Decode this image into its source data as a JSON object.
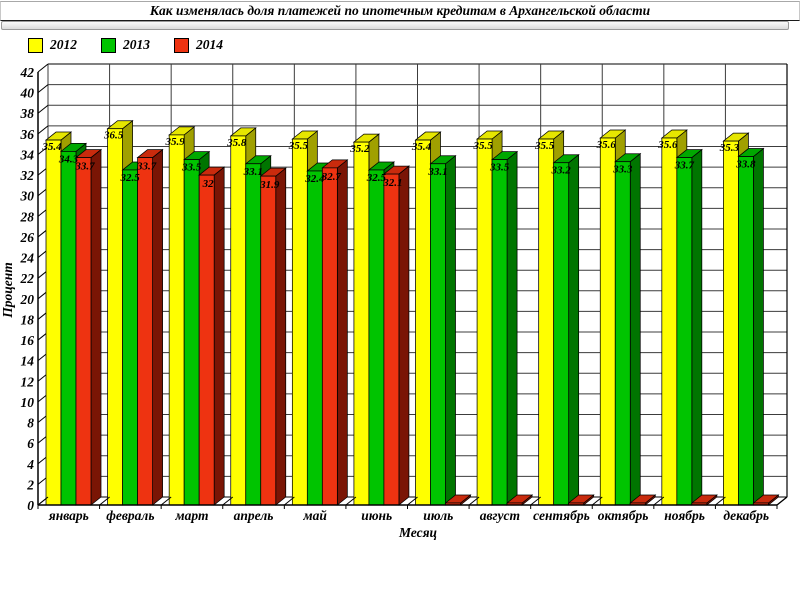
{
  "chart_data": {
    "type": "bar",
    "style": "3d-clustered",
    "title": "Как изменялась доля платежей по ипотечным кредитам в Архангельской области",
    "xlabel": "Месяц",
    "ylabel": "Процент",
    "ylim": [
      0,
      42
    ],
    "y_step": 2,
    "grid": true,
    "legend_position": "top-left",
    "categories": [
      "январь",
      "февраль",
      "март",
      "апрель",
      "май",
      "июнь",
      "июль",
      "август",
      "сентябрь",
      "октябрь",
      "ноябрь",
      "декабрь"
    ],
    "series": [
      {
        "name": "2012",
        "color": "#FFFF00",
        "side_color": "#A0A000",
        "top_color": "#E6E600",
        "values": [
          35.4,
          36.5,
          35.9,
          35.8,
          35.5,
          35.2,
          35.4,
          35.5,
          35.5,
          35.6,
          35.6,
          35.3
        ]
      },
      {
        "name": "2013",
        "color": "#00C400",
        "side_color": "#007500",
        "top_color": "#00A800",
        "values": [
          34.3,
          32.5,
          33.5,
          33.1,
          32.4,
          32.5,
          33.1,
          33.5,
          33.2,
          33.3,
          33.7,
          33.8
        ]
      },
      {
        "name": "2014",
        "color": "#EE3311",
        "side_color": "#7A1505",
        "top_color": "#C92B0D",
        "values": [
          33.7,
          33.7,
          32,
          31.9,
          32.7,
          32.1,
          0,
          0,
          0,
          0,
          0,
          0
        ]
      }
    ]
  },
  "legend": [
    {
      "label": "2012",
      "color": "#FFFF00"
    },
    {
      "label": "2013",
      "color": "#00C400"
    },
    {
      "label": "2014",
      "color": "#EE3311"
    }
  ]
}
